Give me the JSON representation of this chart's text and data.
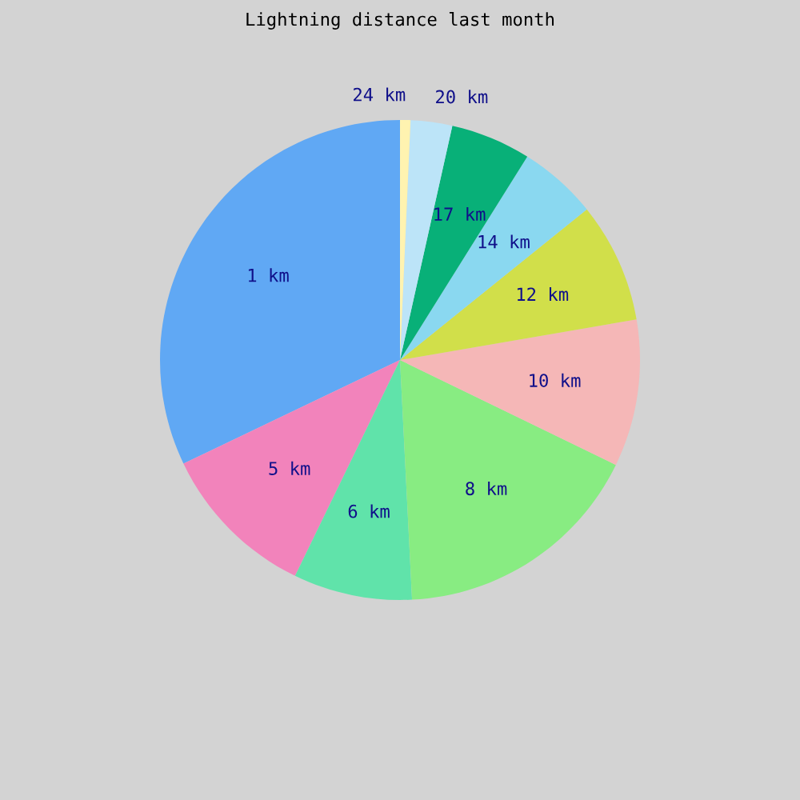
{
  "chart_data": {
    "type": "pie",
    "title": "Lightning distance last month",
    "categories": [
      "1 km",
      "5 km",
      "6 km",
      "8 km",
      "10 km",
      "12 km",
      "14 km",
      "17 km",
      "20 km",
      "24 km"
    ],
    "values": [
      32.1,
      10.7,
      8.0,
      17.0,
      9.9,
      8.1,
      5.3,
      5.4,
      2.8,
      0.7
    ],
    "colors": [
      "#60a8f4",
      "#f283bb",
      "#60e3aa",
      "#88ec82",
      "#f5b7b7",
      "#d1df4a",
      "#8ad8f0",
      "#08b078",
      "#bce4f8",
      "#fff3b0"
    ]
  }
}
